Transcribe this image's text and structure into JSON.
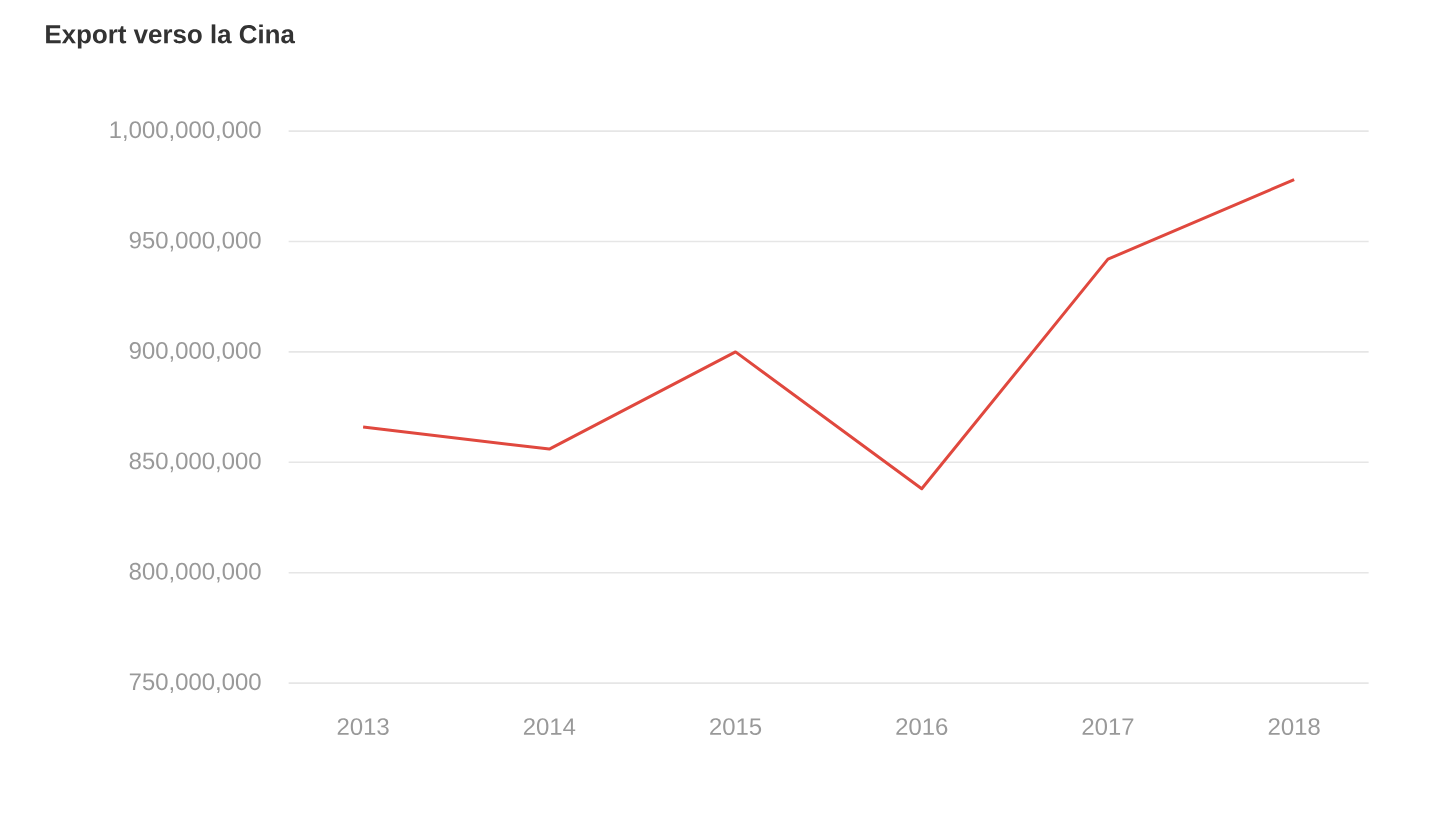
{
  "chart_data": {
    "type": "line",
    "title": "Export verso la Cina",
    "categories": [
      "2013",
      "2014",
      "2015",
      "2016",
      "2017",
      "2018"
    ],
    "series": [
      {
        "color": "#e0483e",
        "values": [
          866000000,
          856000000,
          900000000,
          838000000,
          942000000,
          978000000
        ]
      }
    ],
    "ylim": [
      750000000,
      1000000000
    ],
    "yticks": [
      {
        "value": 750000000,
        "label": "750,000,000"
      },
      {
        "value": 800000000,
        "label": "800,000,000"
      },
      {
        "value": 850000000,
        "label": "850,000,000"
      },
      {
        "value": 900000000,
        "label": "900,000,000"
      },
      {
        "value": 950000000,
        "label": "950,000,000"
      },
      {
        "value": 1000000000,
        "label": "1,000,000,000"
      }
    ],
    "grid": "y",
    "marker": "none",
    "line_style": "solid"
  }
}
